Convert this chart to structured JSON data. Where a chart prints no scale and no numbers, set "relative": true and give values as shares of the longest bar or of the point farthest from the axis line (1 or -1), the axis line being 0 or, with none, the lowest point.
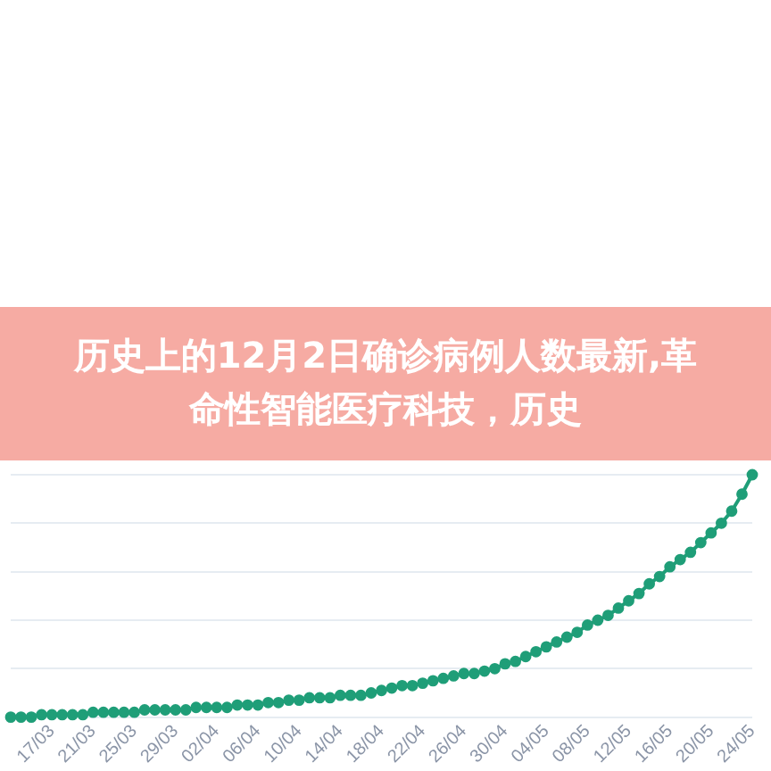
{
  "chart_data": {
    "type": "line",
    "title": "历史上的12月2日确诊病例人数最新,革命性智能医疗科技，历史",
    "relative": true,
    "grid": "y",
    "marker": "circle",
    "categories": [
      null,
      null,
      null,
      null,
      "17/03",
      null,
      null,
      null,
      "21/03",
      null,
      null,
      null,
      "25/03",
      null,
      null,
      null,
      "29/03",
      null,
      null,
      null,
      "02/04",
      null,
      null,
      null,
      "06/04",
      null,
      null,
      null,
      "10/04",
      null,
      null,
      null,
      "14/04",
      null,
      null,
      null,
      "18/04",
      null,
      null,
      null,
      "22/04",
      null,
      null,
      null,
      "26/04",
      null,
      null,
      null,
      "30/04",
      null,
      null,
      null,
      "04/05",
      null,
      null,
      null,
      "08/05",
      null,
      null,
      null,
      "12/05",
      null,
      null,
      null,
      "16/05",
      null,
      null,
      null,
      "20/05",
      null,
      null,
      null,
      "24/05"
    ],
    "series": [
      {
        "color": "#1f9e78",
        "values": [
          0,
          0,
          0,
          0.01,
          0.01,
          0.01,
          0.01,
          0.01,
          0.02,
          0.02,
          0.02,
          0.02,
          0.02,
          0.03,
          0.03,
          0.03,
          0.03,
          0.03,
          0.04,
          0.04,
          0.04,
          0.04,
          0.05,
          0.05,
          0.05,
          0.06,
          0.06,
          0.07,
          0.07,
          0.08,
          0.08,
          0.08,
          0.09,
          0.09,
          0.09,
          0.1,
          0.11,
          0.12,
          0.13,
          0.13,
          0.14,
          0.15,
          0.16,
          0.17,
          0.18,
          0.18,
          0.19,
          0.2,
          0.22,
          0.23,
          0.25,
          0.27,
          0.29,
          0.31,
          0.33,
          0.35,
          0.38,
          0.4,
          0.42,
          0.45,
          0.48,
          0.51,
          0.55,
          0.58,
          0.62,
          0.65,
          0.68,
          0.72,
          0.76,
          0.8,
          0.85,
          0.92,
          1
        ]
      }
    ]
  }
}
